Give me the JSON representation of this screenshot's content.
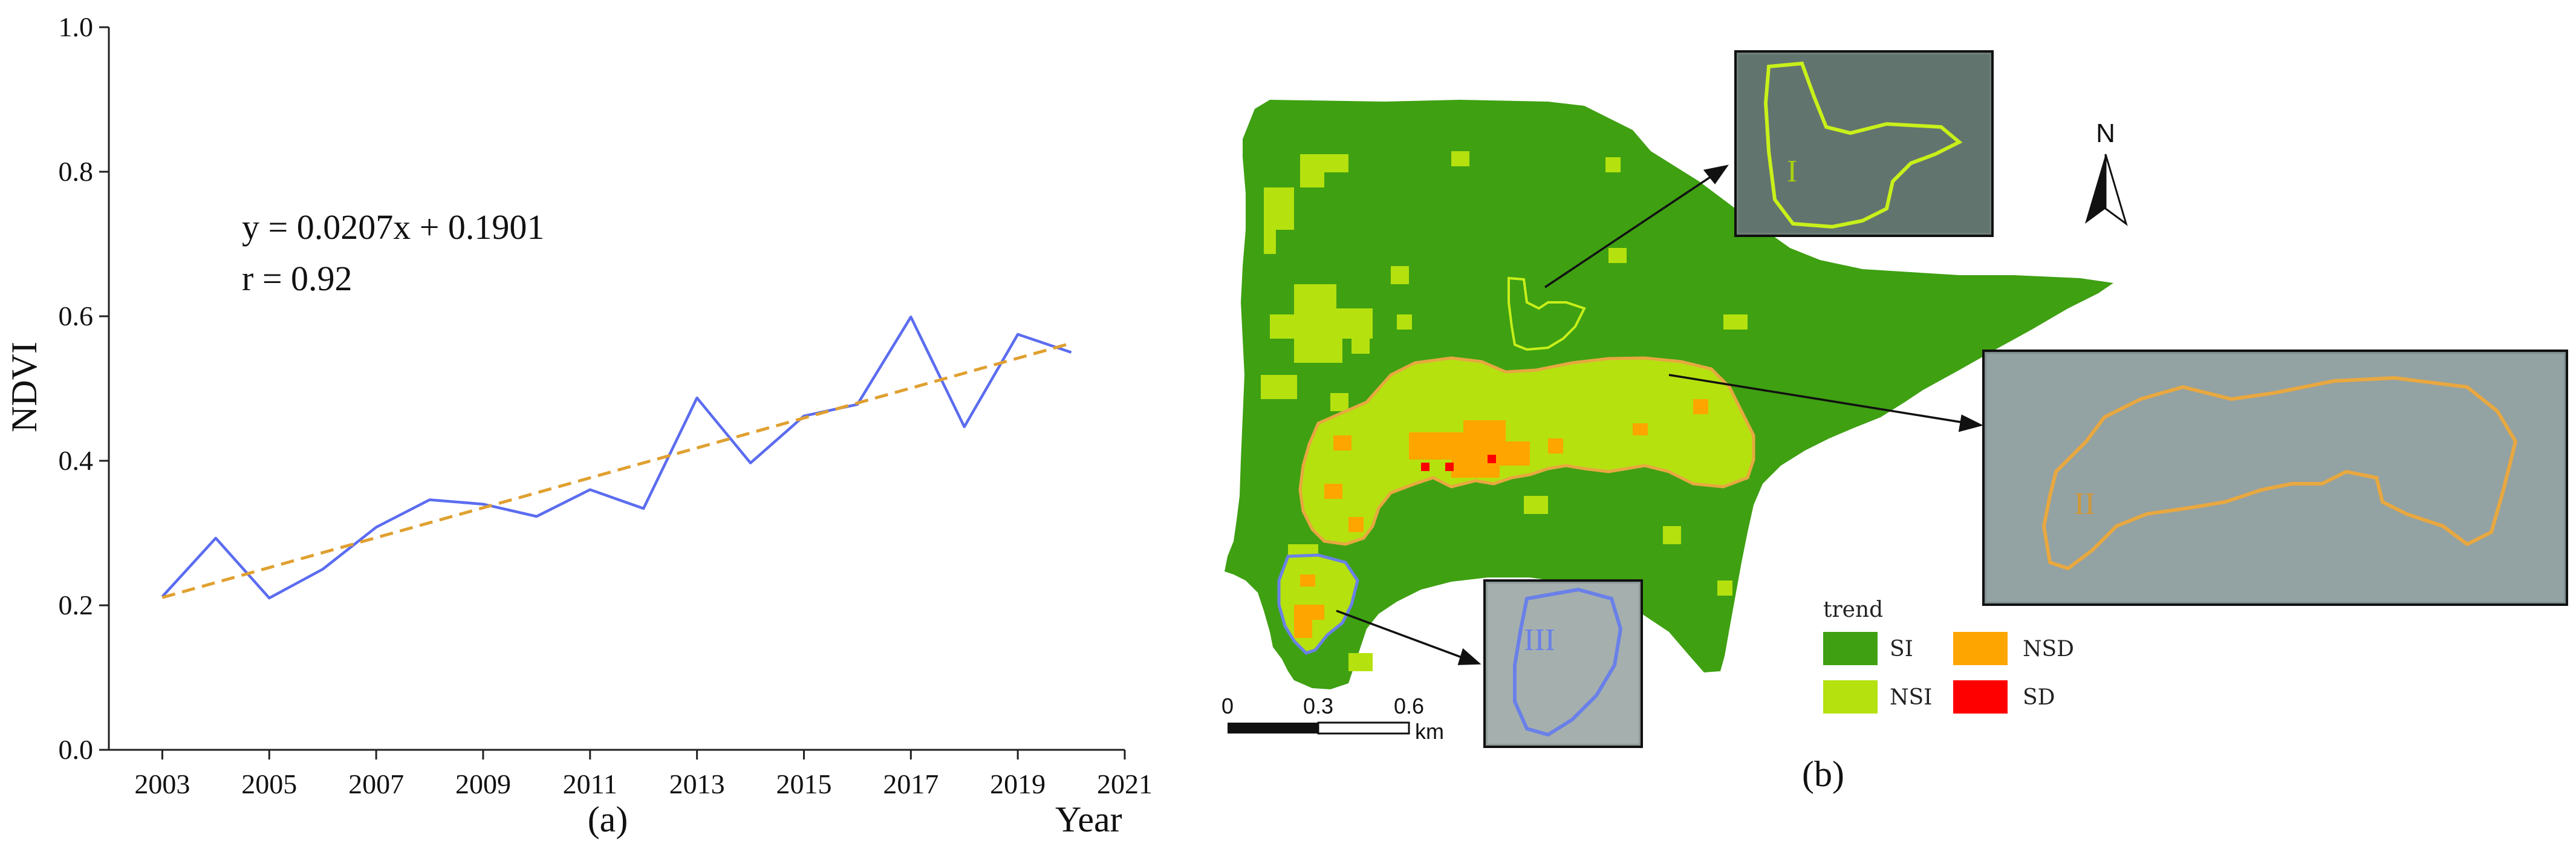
{
  "chart_data": {
    "type": "line",
    "xlabel": "Year",
    "ylabel": "NDVI",
    "caption": "(a)",
    "xlim": [
      2002,
      2021
    ],
    "ylim": [
      0,
      1.0
    ],
    "xticks": [
      "2003",
      "2005",
      "2007",
      "2009",
      "2011",
      "2013",
      "2015",
      "2017",
      "2019",
      "2021"
    ],
    "yticks": [
      "0.0",
      "0.2",
      "0.4",
      "0.6",
      "0.8",
      "1.0"
    ],
    "grid": false,
    "series": [
      {
        "color": "#5B6CF0",
        "x": [
          2003,
          2004,
          2005,
          2006,
          2007,
          2008,
          2009,
          2010,
          2011,
          2012,
          2013,
          2014,
          2015,
          2016,
          2017,
          2018,
          2019,
          2020
        ],
        "values": [
          0.212,
          0.293,
          0.21,
          0.25,
          0.308,
          0.346,
          0.34,
          0.323,
          0.36,
          0.334,
          0.487,
          0.397,
          0.462,
          0.478,
          0.599,
          0.447,
          0.575,
          0.55
        ]
      },
      {
        "style": "dashed",
        "color": "#E0A030",
        "x": [
          2003,
          2020
        ],
        "values": [
          0.2108,
          0.5627
        ]
      }
    ],
    "annotations": [
      "y = 0.0207x + 0.1901",
      "r = 0.92"
    ]
  },
  "map": {
    "caption": "(b)",
    "north_label": "N",
    "scale": {
      "ticks": [
        "0",
        "0.3",
        "0.6"
      ],
      "unit": "km"
    },
    "legend": {
      "title": "trend",
      "items": [
        {
          "label": "SI",
          "color": "#3FA012"
        },
        {
          "label": "NSD",
          "color": "#FFA500"
        },
        {
          "label": "NSI",
          "color": "#B5E10F"
        },
        {
          "label": "SD",
          "color": "#FF0000"
        }
      ]
    },
    "insets": [
      {
        "label": "I",
        "outline_color": "#C8F01A"
      },
      {
        "label": "II",
        "outline_color": "#E8A840"
      },
      {
        "label": "III",
        "outline_color": "#6A80E8"
      }
    ]
  }
}
